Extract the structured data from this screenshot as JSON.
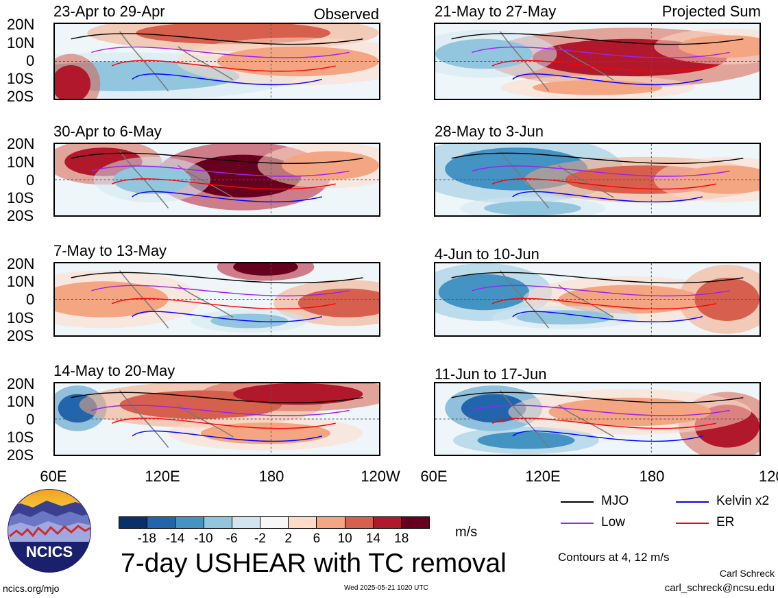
{
  "header": {
    "left_label": "Observed",
    "right_label": "Projected Sum"
  },
  "panels_left": [
    {
      "title": "23-Apr to 29-Apr"
    },
    {
      "title": "30-Apr to 6-May"
    },
    {
      "title": "7-May to 13-May"
    },
    {
      "title": "14-May to 20-May"
    }
  ],
  "panels_right": [
    {
      "title": "21-May to 27-May"
    },
    {
      "title": "28-May to 3-Jun"
    },
    {
      "title": "4-Jun to 10-Jun"
    },
    {
      "title": "11-Jun to 17-Jun"
    }
  ],
  "axes": {
    "lat_labels": [
      "20N",
      "10N",
      "0",
      "10S",
      "20S"
    ],
    "lon_labels": [
      "60E",
      "120E",
      "180",
      "120W"
    ]
  },
  "colorbar": {
    "colors": [
      "#08306b",
      "#2166ac",
      "#4393c3",
      "#92c5de",
      "#d1e5f0",
      "#f7f7f7",
      "#fddbc7",
      "#f4a582",
      "#d6604d",
      "#b2182b",
      "#67001f"
    ],
    "tick_labels": [
      "-18",
      "-14",
      "-10",
      "-6",
      "-2",
      "2",
      "6",
      "10",
      "14",
      "18"
    ],
    "units": "m/s"
  },
  "legend": {
    "mjo": {
      "label": "MJO",
      "color": "#000000"
    },
    "kelvin": {
      "label": "Kelvin x2",
      "color": "#0000ff"
    },
    "low": {
      "label": "Low",
      "color": "#a020f0"
    },
    "er": {
      "label": "ER",
      "color": "#ff0000"
    },
    "contour_note": "Contours at 4, 12 m/s"
  },
  "title": "7-day USHEAR with TC removal",
  "logo": {
    "text": "NCICS"
  },
  "footer": {
    "site": "ncics.org/mjo",
    "timestamp": "Wed 2025-05-21 1020 UTC",
    "author": "Carl Schreck",
    "email": "carl_schreck@ncsu.edu"
  }
}
